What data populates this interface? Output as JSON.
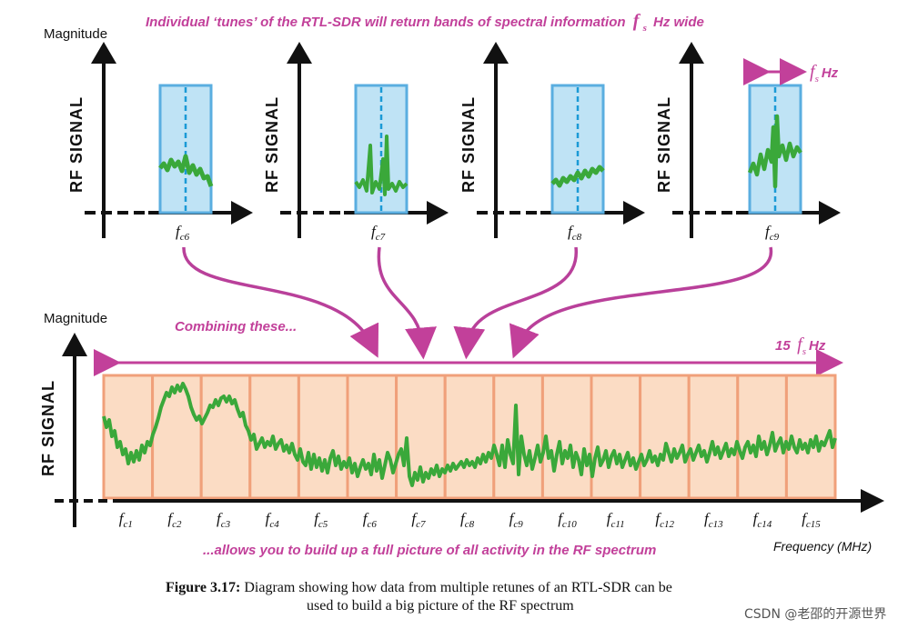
{
  "top_banner": {
    "prefix": "Individual ‘tunes’ of the RTL-SDR will return bands of spectral information",
    "symbol": "f",
    "subscript": "s",
    "suffix": "Hz wide"
  },
  "axis": {
    "magnitude": "Magnitude",
    "rf_signal": "RF  SIGNAL",
    "frequency": "Frequency (MHz)"
  },
  "fs_marker": {
    "symbol": "f",
    "subscript": "s",
    "unit": "Hz"
  },
  "top_labels": [
    {
      "main": "f",
      "sub": "c6"
    },
    {
      "main": "f",
      "sub": "c7"
    },
    {
      "main": "f",
      "sub": "c8"
    },
    {
      "main": "f",
      "sub": "c9"
    }
  ],
  "combining": "Combining these...",
  "span_label": {
    "count": "15",
    "symbol": "f",
    "subscript": "s",
    "unit": "Hz"
  },
  "bottom_labels": [
    {
      "main": "f",
      "sub": "c1"
    },
    {
      "main": "f",
      "sub": "c2"
    },
    {
      "main": "f",
      "sub": "c3"
    },
    {
      "main": "f",
      "sub": "c4"
    },
    {
      "main": "f",
      "sub": "c5"
    },
    {
      "main": "f",
      "sub": "c6"
    },
    {
      "main": "f",
      "sub": "c7"
    },
    {
      "main": "f",
      "sub": "c8"
    },
    {
      "main": "f",
      "sub": "c9"
    },
    {
      "main": "f",
      "sub": "c10"
    },
    {
      "main": "f",
      "sub": "c11"
    },
    {
      "main": "f",
      "sub": "c12"
    },
    {
      "main": "f",
      "sub": "c13"
    },
    {
      "main": "f",
      "sub": "c14"
    },
    {
      "main": "f",
      "sub": "c15"
    }
  ],
  "bottom_banner": "...allows you to build up a full picture of all activity in the RF spectrum",
  "caption": {
    "label": "Figure 3.17:",
    "line1": "Diagram showing how data from multiple retunes of an RTL-SDR can be",
    "line2": "used to build a big picture of the RF spectrum"
  },
  "watermark": "CSDN @老邵的开源世界",
  "colors": {
    "accent": "#c2409a",
    "signal": "#3aa83a",
    "band_fill": "#bfe3f5",
    "band_stroke": "#5aaee0",
    "combined_fill": "#fbdcc4",
    "combined_stroke": "#f0a07a"
  }
}
